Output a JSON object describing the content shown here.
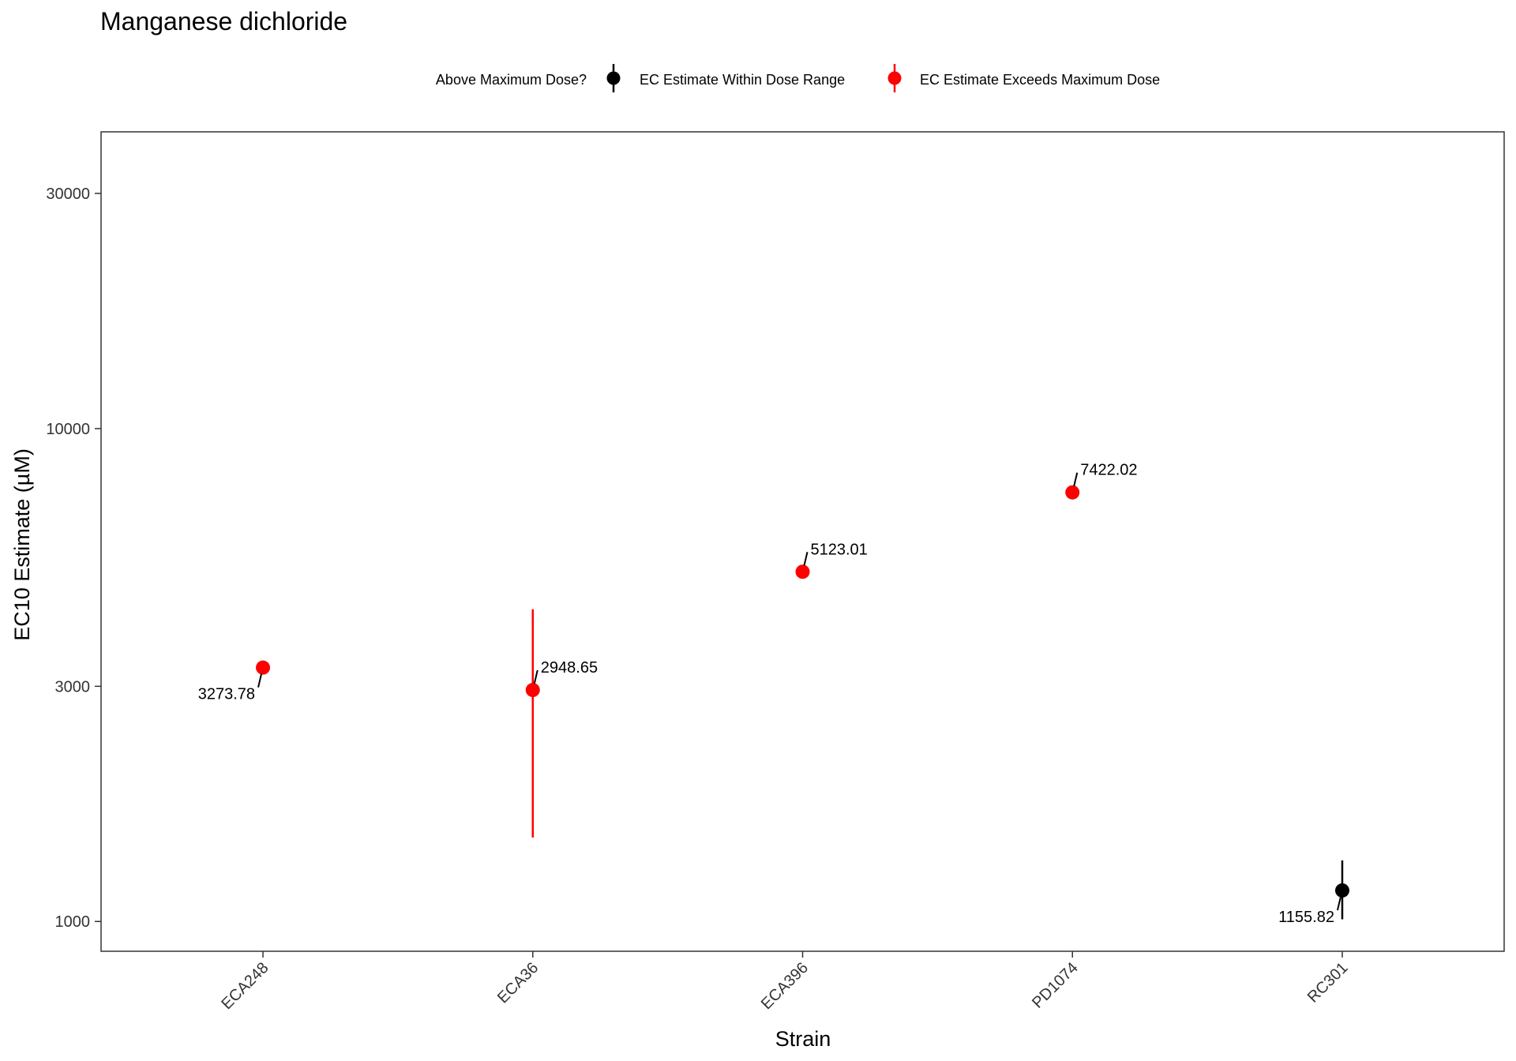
{
  "chart_data": {
    "type": "scatter",
    "title": "Manganese dichloride",
    "xlabel": "Strain",
    "ylabel": "EC10 Estimate (µM)",
    "y_scale": "log10",
    "ylim": [
      870,
      40000
    ],
    "y_ticks": [
      1000,
      3000,
      10000,
      30000
    ],
    "y_tick_labels": [
      "1000",
      "3000",
      "10000",
      "30000"
    ],
    "categories": [
      "ECA248",
      "ECA36",
      "ECA396",
      "PD1074",
      "RC301"
    ],
    "legend": {
      "title": "Above Maximum Dose?",
      "placement": "top",
      "entries": [
        {
          "label": "EC Estimate Within Dose Range",
          "color": "#000000"
        },
        {
          "label": "EC Estimate Exceeds Maximum Dose",
          "color": "#ff0000"
        }
      ]
    },
    "points": [
      {
        "strain": "ECA248",
        "value": 3273.78,
        "label": "3273.78",
        "status": "exceeds",
        "color": "#ff0000",
        "lower": null,
        "upper": null,
        "label_side": "below-left"
      },
      {
        "strain": "ECA36",
        "value": 2948.65,
        "label": "2948.65",
        "status": "exceeds",
        "color": "#ff0000",
        "lower": 1480,
        "upper": 4300,
        "label_side": "above-right"
      },
      {
        "strain": "ECA396",
        "value": 5123.01,
        "label": "5123.01",
        "status": "exceeds",
        "color": "#ff0000",
        "lower": null,
        "upper": null,
        "label_side": "above-right"
      },
      {
        "strain": "PD1074",
        "value": 7422.02,
        "label": "7422.02",
        "status": "exceeds",
        "color": "#ff0000",
        "lower": null,
        "upper": null,
        "label_side": "above-right"
      },
      {
        "strain": "RC301",
        "value": 1155.82,
        "label": "1155.82",
        "status": "within",
        "color": "#000000",
        "lower": 1010,
        "upper": 1330,
        "label_side": "below-left"
      }
    ]
  }
}
